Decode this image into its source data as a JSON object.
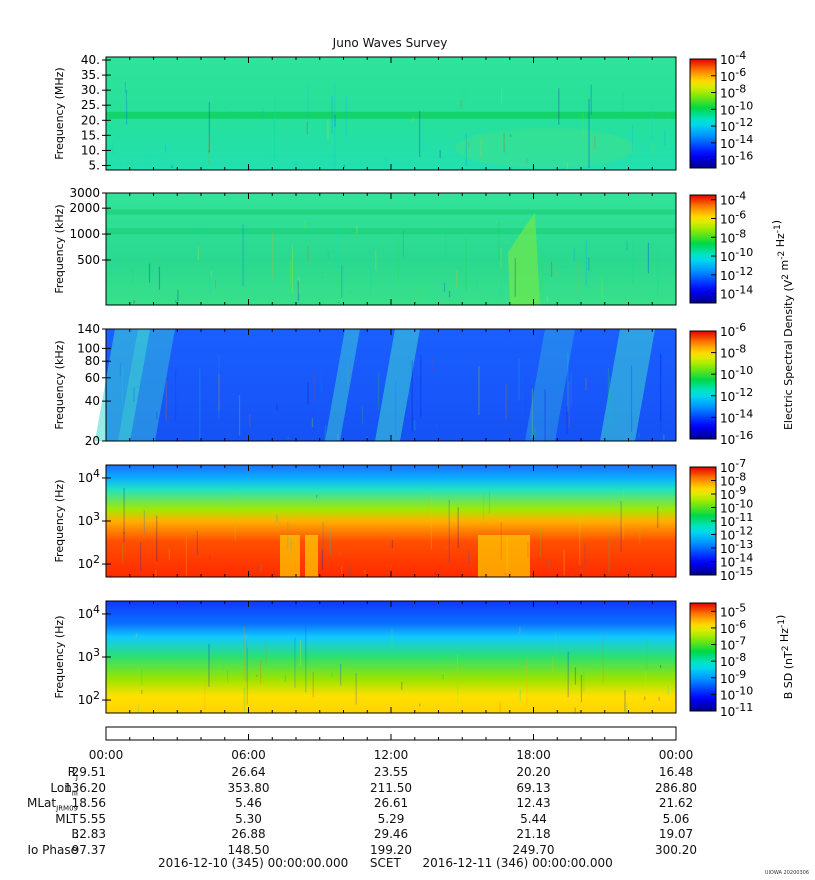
{
  "chart_data": {
    "type": "heatmap",
    "title": "Juno Waves Survey",
    "x_tick_labels": [
      "00:00",
      "06:00",
      "12:00",
      "18:00",
      "00:00"
    ],
    "panels": [
      {
        "ylabel": "Frequency (MHz)",
        "yscale": "linear",
        "ylim": [
          3.5,
          41
        ],
        "ytick_labels": [
          "40.",
          "35.",
          "30.",
          "25.",
          "20.",
          "15.",
          "10.",
          "5."
        ],
        "ytick_values": [
          40,
          35,
          30,
          25,
          20,
          15,
          10,
          5
        ],
        "colorbar_labels": [
          "10^-4",
          "10^-6",
          "10^-8",
          "10^-10",
          "10^-12",
          "10^-14",
          "10^-16"
        ],
        "clim_exp": [
          -17,
          -4
        ]
      },
      {
        "ylabel": "Frequency (kHz)",
        "yscale": "log",
        "ylim": [
          150,
          3000
        ],
        "ytick_labels": [
          "3000",
          "2000",
          "1000",
          "500"
        ],
        "ytick_values": [
          3000,
          2000,
          1000,
          500
        ],
        "colorbar_labels": [
          "10^-4",
          "10^-6",
          "10^-8",
          "10^-10",
          "10^-12",
          "10^-14"
        ],
        "clim_exp": [
          -15,
          -3.5
        ]
      },
      {
        "ylabel": "Frequency (kHz)",
        "yscale": "log",
        "ylim": [
          20,
          140
        ],
        "ytick_labels": [
          "140",
          "100",
          "80",
          "60",
          "40",
          "20"
        ],
        "ytick_values": [
          140,
          100,
          80,
          60,
          40,
          20
        ],
        "colorbar_labels": [
          "10^-6",
          "10^-8",
          "10^-10",
          "10^-12",
          "10^-14",
          "10^-16"
        ],
        "clim_exp": [
          -16,
          -6
        ]
      },
      {
        "ylabel": "Frequency (Hz)",
        "yscale": "log",
        "ylim": [
          50,
          20000
        ],
        "ytick_labels": [
          "10^4",
          "10^3",
          "10^2"
        ],
        "ytick_values": [
          10000,
          1000,
          100
        ],
        "colorbar_labels": [
          "10^-7",
          "10^-8",
          "10^-9",
          "10^-10",
          "10^-11",
          "10^-12",
          "10^-13",
          "10^-14",
          "10^-15"
        ],
        "clim_exp": [
          -15,
          -7
        ]
      },
      {
        "ylabel": "Frequency (Hz)",
        "yscale": "log",
        "ylim": [
          50,
          20000
        ],
        "ytick_labels": [
          "10^4",
          "10^3",
          "10^2"
        ],
        "ytick_values": [
          10000,
          1000,
          100
        ],
        "colorbar_labels": [
          "10^-5",
          "10^-6",
          "10^-7",
          "10^-8",
          "10^-9",
          "10^-10",
          "10^-11"
        ],
        "clim_exp": [
          -11,
          -4.5
        ]
      }
    ],
    "shared_colorbar_label_upper": "Electric Spectral Density (V^2 m^-2 Hz^-1)",
    "colorbar_label_bottom": "B SD (nT^2 Hz^-1)",
    "ephemeris": {
      "rows": [
        {
          "label": "R_J",
          "values": [
            "29.51",
            "26.64",
            "23.55",
            "20.20",
            "16.48"
          ]
        },
        {
          "label": "Lon_III",
          "values": [
            "136.20",
            "353.80",
            "211.50",
            "69.13",
            "286.80"
          ]
        },
        {
          "label": "MLat_JRM09",
          "values": [
            "18.56",
            "5.46",
            "26.61",
            "12.43",
            "21.62"
          ]
        },
        {
          "label": "MLT",
          "values": [
            "5.55",
            "5.30",
            "5.29",
            "5.44",
            "5.06"
          ]
        },
        {
          "label": "L",
          "values": [
            "32.83",
            "26.88",
            "29.46",
            "21.18",
            "19.07"
          ]
        },
        {
          "label": "Io Phase",
          "values": [
            "97.37",
            "148.50",
            "199.20",
            "249.70",
            "300.20"
          ]
        }
      ]
    },
    "time_range": {
      "start": "2016-12-10 (345) 00:00:00.000",
      "frame": "SCET",
      "end": "2016-12-11 (346) 00:00:00.000"
    },
    "credit": "UIOWA 20200306"
  }
}
